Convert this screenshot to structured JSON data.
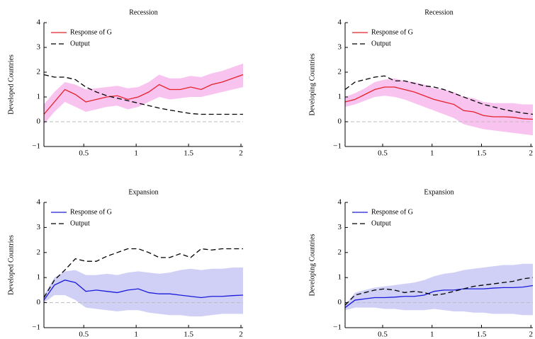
{
  "chart_data": [
    {
      "type": "line",
      "title": "Recession",
      "ylabel": "Developed Countries",
      "x": [
        0.12,
        0.22,
        0.32,
        0.42,
        0.52,
        0.62,
        0.72,
        0.82,
        0.92,
        1.02,
        1.12,
        1.22,
        1.32,
        1.42,
        1.52,
        1.62,
        1.72,
        1.82,
        1.92,
        2.02
      ],
      "xlim": [
        0.12,
        2.02
      ],
      "ylim": [
        -1,
        4
      ],
      "xticks": [
        0.5,
        1,
        1.5,
        2
      ],
      "yticks": [
        {
          "value": -1,
          "label": "−1"
        },
        0,
        1,
        2,
        3,
        4
      ],
      "zero_line": true,
      "series": [
        {
          "name": "Response of G",
          "color": "#e8202a",
          "band_color": "#f7b8ec",
          "values": [
            0.3,
            0.8,
            1.3,
            1.1,
            0.8,
            0.9,
            1.0,
            1.05,
            0.9,
            1.0,
            1.2,
            1.5,
            1.3,
            1.3,
            1.4,
            1.3,
            1.5,
            1.6,
            1.75,
            1.9
          ],
          "band_lower": [
            -0.1,
            0.4,
            0.8,
            0.6,
            0.4,
            0.5,
            0.6,
            0.65,
            0.5,
            0.6,
            0.8,
            1.0,
            0.9,
            0.95,
            1.0,
            1.0,
            1.1,
            1.2,
            1.3,
            1.4
          ],
          "band_upper": [
            0.7,
            1.2,
            1.6,
            1.5,
            1.3,
            1.35,
            1.4,
            1.45,
            1.35,
            1.4,
            1.6,
            1.9,
            1.75,
            1.75,
            1.85,
            1.8,
            1.95,
            2.05,
            2.2,
            2.35
          ]
        },
        {
          "name": "Output",
          "color": "#000000",
          "dash": true,
          "values": [
            1.9,
            1.8,
            1.8,
            1.7,
            1.4,
            1.2,
            1.05,
            0.95,
            0.85,
            0.75,
            0.65,
            0.55,
            0.47,
            0.4,
            0.33,
            0.3,
            0.3,
            0.3,
            0.3,
            0.3
          ]
        }
      ]
    },
    {
      "type": "line",
      "title": "Recession",
      "ylabel": "Developing Countries",
      "x": [
        0.12,
        0.22,
        0.32,
        0.42,
        0.52,
        0.62,
        0.72,
        0.82,
        0.92,
        1.02,
        1.12,
        1.22,
        1.32,
        1.42,
        1.52,
        1.62,
        1.72,
        1.82,
        1.92,
        2.02
      ],
      "xlim": [
        0.12,
        2.02
      ],
      "ylim": [
        -1,
        4
      ],
      "xticks": [
        0.5,
        1,
        1.5,
        2
      ],
      "yticks": [
        {
          "value": -1,
          "label": "−1"
        },
        0,
        1,
        2,
        3,
        4
      ],
      "zero_line": true,
      "series": [
        {
          "name": "Response of G",
          "color": "#e8202a",
          "band_color": "#f7b8ec",
          "values": [
            0.8,
            0.9,
            1.1,
            1.3,
            1.4,
            1.4,
            1.3,
            1.2,
            1.05,
            0.9,
            0.8,
            0.7,
            0.45,
            0.4,
            0.25,
            0.2,
            0.2,
            0.18,
            0.12,
            0.1
          ],
          "band_lower": [
            0.6,
            0.7,
            0.85,
            1.0,
            1.05,
            1.0,
            0.9,
            0.75,
            0.6,
            0.45,
            0.3,
            0.15,
            -0.1,
            -0.2,
            -0.3,
            -0.35,
            -0.4,
            -0.45,
            -0.5,
            -0.55
          ],
          "band_upper": [
            1.0,
            1.15,
            1.35,
            1.6,
            1.7,
            1.75,
            1.65,
            1.6,
            1.5,
            1.35,
            1.3,
            1.2,
            1.0,
            0.95,
            0.8,
            0.75,
            0.75,
            0.75,
            0.7,
            0.7
          ]
        },
        {
          "name": "Output",
          "color": "#000000",
          "dash": true,
          "values": [
            1.3,
            1.6,
            1.7,
            1.8,
            1.85,
            1.65,
            1.65,
            1.55,
            1.45,
            1.4,
            1.3,
            1.15,
            1.0,
            0.85,
            0.7,
            0.6,
            0.5,
            0.42,
            0.35,
            0.3
          ]
        }
      ]
    },
    {
      "type": "line",
      "title": "Expansion",
      "ylabel": "Developed Countries",
      "x": [
        0.12,
        0.22,
        0.32,
        0.42,
        0.52,
        0.62,
        0.72,
        0.82,
        0.92,
        1.02,
        1.12,
        1.22,
        1.32,
        1.42,
        1.52,
        1.62,
        1.72,
        1.82,
        1.92,
        2.02
      ],
      "xlim": [
        0.12,
        2.02
      ],
      "ylim": [
        -1,
        4
      ],
      "xticks": [
        0.5,
        1,
        1.5,
        2
      ],
      "yticks": [
        {
          "value": -1,
          "label": "−1"
        },
        0,
        1,
        2,
        3,
        4
      ],
      "zero_line": true,
      "series": [
        {
          "name": "Response of G",
          "color": "#1a1adc",
          "band_color": "#c8c8f5",
          "values": [
            0.1,
            0.7,
            0.9,
            0.8,
            0.45,
            0.5,
            0.45,
            0.4,
            0.5,
            0.55,
            0.4,
            0.35,
            0.35,
            0.3,
            0.25,
            0.2,
            0.25,
            0.25,
            0.28,
            0.3
          ],
          "band_lower": [
            0.0,
            0.3,
            0.3,
            0.1,
            -0.2,
            -0.25,
            -0.3,
            -0.35,
            -0.3,
            -0.3,
            -0.4,
            -0.45,
            -0.5,
            -0.5,
            -0.55,
            -0.55,
            -0.5,
            -0.45,
            -0.45,
            -0.45
          ],
          "band_upper": [
            0.3,
            1.0,
            1.25,
            1.3,
            1.1,
            1.1,
            1.15,
            1.1,
            1.2,
            1.25,
            1.2,
            1.15,
            1.2,
            1.3,
            1.35,
            1.3,
            1.35,
            1.35,
            1.4,
            1.4
          ]
        },
        {
          "name": "Output",
          "color": "#000000",
          "dash": true,
          "values": [
            0.2,
            0.9,
            1.3,
            1.75,
            1.65,
            1.65,
            1.85,
            2.0,
            2.15,
            2.15,
            2.0,
            1.8,
            1.8,
            1.95,
            1.8,
            2.15,
            2.1,
            2.15,
            2.15,
            2.15
          ]
        }
      ]
    },
    {
      "type": "line",
      "title": "Expansion",
      "ylabel": "Developing Countries",
      "x": [
        0.12,
        0.22,
        0.32,
        0.42,
        0.52,
        0.62,
        0.72,
        0.82,
        0.92,
        1.02,
        1.12,
        1.22,
        1.32,
        1.42,
        1.52,
        1.62,
        1.72,
        1.82,
        1.92,
        2.02
      ],
      "xlim": [
        0.12,
        2.02
      ],
      "ylim": [
        -1,
        4
      ],
      "xticks": [
        0.5,
        1,
        1.5,
        2
      ],
      "yticks": [
        {
          "value": -1,
          "label": "−1"
        },
        0,
        1,
        2,
        3,
        4
      ],
      "zero_line": true,
      "series": [
        {
          "name": "Response of G",
          "color": "#1a1adc",
          "band_color": "#c8c8f5",
          "values": [
            -0.2,
            0.1,
            0.15,
            0.2,
            0.2,
            0.22,
            0.25,
            0.25,
            0.3,
            0.45,
            0.5,
            0.5,
            0.55,
            0.55,
            0.55,
            0.58,
            0.6,
            0.6,
            0.62,
            0.68
          ],
          "band_lower": [
            -0.3,
            -0.2,
            -0.2,
            -0.2,
            -0.25,
            -0.25,
            -0.3,
            -0.3,
            -0.3,
            -0.25,
            -0.3,
            -0.35,
            -0.35,
            -0.4,
            -0.4,
            -0.45,
            -0.45,
            -0.45,
            -0.5,
            -0.5
          ],
          "band_upper": [
            -0.1,
            0.4,
            0.5,
            0.6,
            0.65,
            0.7,
            0.75,
            0.8,
            0.9,
            1.05,
            1.15,
            1.2,
            1.3,
            1.35,
            1.4,
            1.45,
            1.5,
            1.5,
            1.55,
            1.55
          ]
        },
        {
          "name": "Output",
          "color": "#000000",
          "dash": true,
          "values": [
            -0.1,
            0.3,
            0.4,
            0.5,
            0.55,
            0.5,
            0.4,
            0.45,
            0.4,
            0.3,
            0.35,
            0.45,
            0.55,
            0.65,
            0.7,
            0.75,
            0.8,
            0.85,
            0.95,
            1.0
          ]
        }
      ]
    }
  ]
}
